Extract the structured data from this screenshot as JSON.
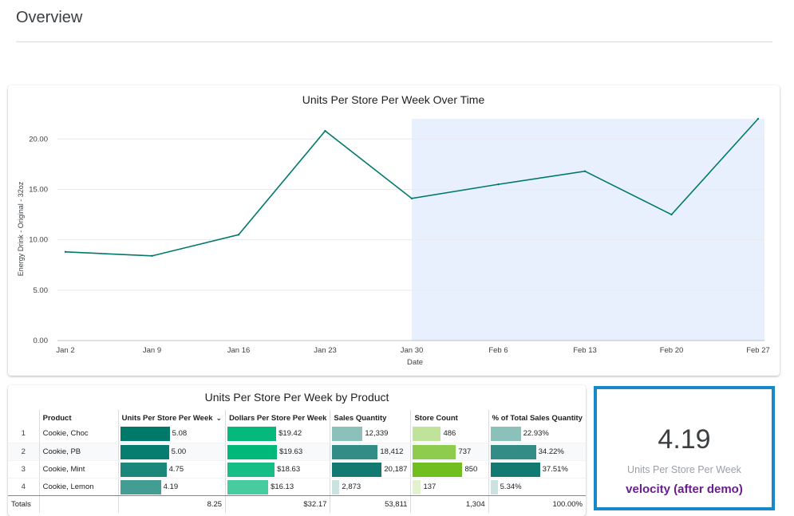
{
  "page": {
    "title": "Overview"
  },
  "line_chart": {
    "title": "Units Per Store Per Week Over Time",
    "ylabel": "Energy Drink - Original - 32oz",
    "xlabel": "Date",
    "line_color": "#00796b",
    "highlight_color": "#e8f0fe",
    "highlight_range": [
      "Jan 30",
      "Feb 27"
    ]
  },
  "chart_data": {
    "type": "line",
    "title": "Units Per Store Per Week Over Time",
    "xlabel": "Date",
    "ylabel": "Energy Drink - Original - 32oz",
    "categories": [
      "Jan 2",
      "Jan 9",
      "Jan 16",
      "Jan 23",
      "Jan 30",
      "Feb 6",
      "Feb 13",
      "Feb 20",
      "Feb 27"
    ],
    "series": [
      {
        "values": [
          8.8,
          8.4,
          10.5,
          20.8,
          14.1,
          15.5,
          16.8,
          12.5,
          22.0
        ]
      }
    ],
    "yticks": [
      "0.00",
      "5.00",
      "10.00",
      "15.00",
      "20.00"
    ],
    "ylim": [
      0,
      22
    ],
    "grid": true
  },
  "product_table": {
    "title": "Units Per Store Per Week by Product",
    "headers": {
      "product": "Product",
      "upsw": "Units Per Store Per Week",
      "dpsw": "Dollars Per Store Per Week",
      "sales_qty": "Sales Quantity",
      "store_count": "Store Count",
      "pct_total": "% of Total Sales Quantity"
    },
    "rows": [
      {
        "idx": "1",
        "product": "Cookie, Choc",
        "upsw": "5.08",
        "upsw_v": 5.08,
        "dpsw": "$19.42",
        "dpsw_v": 19.42,
        "sales_qty": "12,339",
        "sales_qty_v": 12339,
        "store_count": "486",
        "store_count_v": 486,
        "pct_total": "22.93%",
        "pct_total_v": 22.93
      },
      {
        "idx": "2",
        "product": "Cookie, PB",
        "upsw": "5.00",
        "upsw_v": 5.0,
        "dpsw": "$19.63",
        "dpsw_v": 19.63,
        "sales_qty": "18,412",
        "sales_qty_v": 18412,
        "store_count": "737",
        "store_count_v": 737,
        "pct_total": "34.22%",
        "pct_total_v": 34.22
      },
      {
        "idx": "3",
        "product": "Cookie, Mint",
        "upsw": "4.75",
        "upsw_v": 4.75,
        "dpsw": "$18.63",
        "dpsw_v": 18.63,
        "sales_qty": "20,187",
        "sales_qty_v": 20187,
        "store_count": "850",
        "store_count_v": 850,
        "pct_total": "37.51%",
        "pct_total_v": 37.51
      },
      {
        "idx": "4",
        "product": "Cookie, Lemon",
        "upsw": "4.19",
        "upsw_v": 4.19,
        "dpsw": "$16.13",
        "dpsw_v": 16.13,
        "sales_qty": "2,873",
        "sales_qty_v": 2873,
        "store_count": "137",
        "store_count_v": 137,
        "pct_total": "5.34%",
        "pct_total_v": 5.34
      }
    ],
    "totals": {
      "label": "Totals",
      "upsw": "8.25",
      "dpsw": "$32.17",
      "sales_qty": "53,811",
      "store_count": "1,304",
      "pct_total": "100.00%"
    }
  },
  "kpi": {
    "value": "4.19",
    "label": "Units Per Store Per Week",
    "note": "velocity (after demo)",
    "border_color": "#1788c8",
    "note_color": "#6b1d8f"
  }
}
